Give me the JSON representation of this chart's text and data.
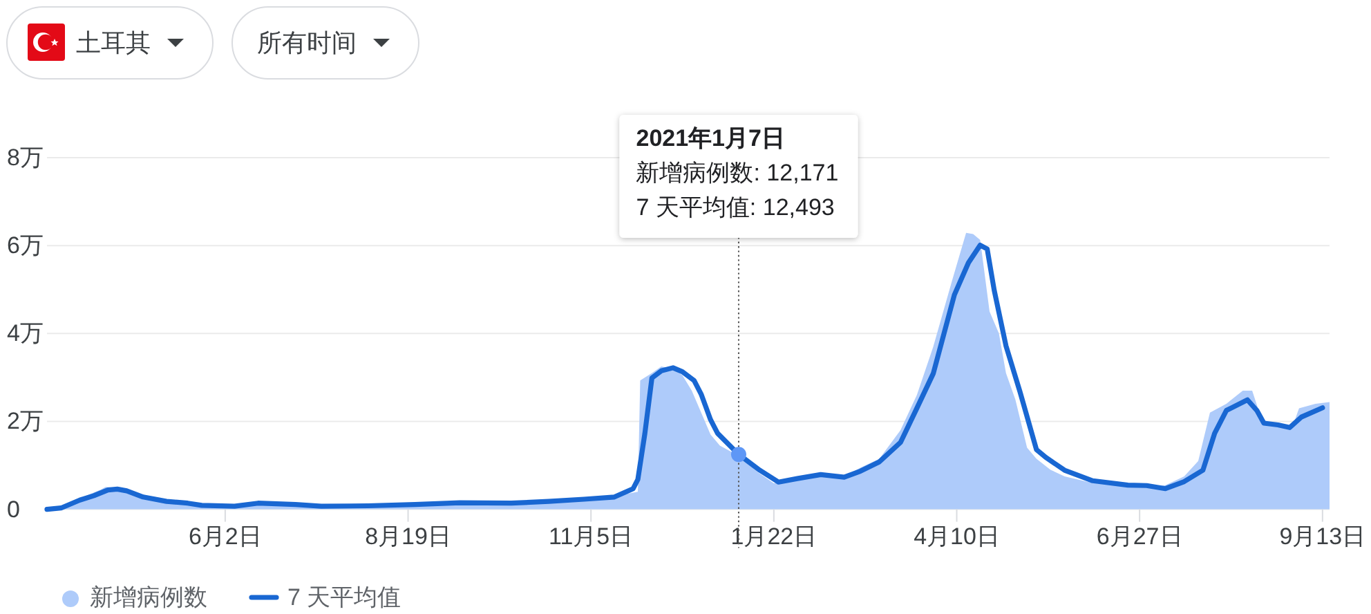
{
  "chart_data": {
    "type": "line",
    "annotations": [
      "土耳其",
      "所有时间",
      "2021年1月7日",
      "新增病例数: 12,171",
      "7 天平均值: 12,493"
    ],
    "series": [
      {
        "name": "新增病例数",
        "type": "area",
        "color": "#aecbfa",
        "x": [
          "2020-03-18",
          "2020-03-24",
          "2020-04-01",
          "2020-04-10",
          "2020-04-12",
          "2020-04-18",
          "2020-04-24",
          "2020-05-01",
          "2020-05-10",
          "2020-05-20",
          "2020-06-02",
          "2020-06-12",
          "2020-07-01",
          "2020-07-15",
          "2020-08-02",
          "2020-08-22",
          "2020-09-10",
          "2020-10-02",
          "2020-10-18",
          "2020-11-02",
          "2020-11-15",
          "2020-11-25",
          "2020-11-26",
          "2020-12-01",
          "2020-12-05",
          "2020-12-10",
          "2020-12-14",
          "2020-12-18",
          "2020-12-22",
          "2020-12-26",
          "2020-12-30",
          "2021-01-07",
          "2021-01-15",
          "2021-01-22",
          "2021-02-01",
          "2021-02-11",
          "2021-02-21",
          "2021-02-28",
          "2021-03-08",
          "2021-03-17",
          "2021-03-24",
          "2021-03-31",
          "2021-04-08",
          "2021-04-14",
          "2021-04-17",
          "2021-04-20",
          "2021-04-24",
          "2021-04-28",
          "2021-05-01",
          "2021-05-05",
          "2021-05-10",
          "2021-05-14",
          "2021-05-20",
          "2021-05-26",
          "2021-06-07",
          "2021-06-22",
          "2021-06-30",
          "2021-07-08",
          "2021-07-16",
          "2021-07-22",
          "2021-07-27",
          "2021-08-03",
          "2021-08-10",
          "2021-08-14",
          "2021-08-18",
          "2021-08-25",
          "2021-08-31",
          "2021-09-03",
          "2021-09-10",
          "2021-09-16"
        ],
        "values": [
          0,
          0.05,
          0.25,
          0.45,
          0.51,
          0.48,
          0.38,
          0.26,
          0.16,
          0.1,
          0.09,
          0.15,
          0.12,
          0.1,
          0.1,
          0.12,
          0.16,
          0.15,
          0.18,
          0.23,
          0.3,
          0.4,
          2.93,
          3.1,
          3.25,
          3.2,
          3.05,
          2.7,
          2.2,
          1.7,
          1.45,
          1.2171,
          0.85,
          0.59,
          0.75,
          0.8,
          0.75,
          0.95,
          1.15,
          1.8,
          2.6,
          3.7,
          5.2,
          6.29,
          6.26,
          6.13,
          4.5,
          4.0,
          3.1,
          2.5,
          1.4,
          1.15,
          0.9,
          0.75,
          0.6,
          0.53,
          0.5,
          0.55,
          0.75,
          1.1,
          2.2,
          2.4,
          2.7,
          2.7,
          2.05,
          1.9,
          1.85,
          2.3,
          2.4,
          2.44
        ]
      },
      {
        "name": "7 天平均值",
        "color": "#1967d2",
        "x": [
          "2020-03-18",
          "2020-03-24",
          "2020-04-01",
          "2020-04-07",
          "2020-04-13",
          "2020-04-17",
          "2020-04-21",
          "2020-04-28",
          "2020-05-08",
          "2020-05-17",
          "2020-05-23",
          "2020-06-06",
          "2020-06-16",
          "2020-07-02",
          "2020-07-13",
          "2020-08-02",
          "2020-08-22",
          "2020-09-10",
          "2020-10-02",
          "2020-10-18",
          "2020-11-02",
          "2020-11-15",
          "2020-11-23",
          "2020-11-25",
          "2020-11-28",
          "2020-12-01",
          "2020-12-05",
          "2020-12-10",
          "2020-12-14",
          "2020-12-19",
          "2020-12-22",
          "2020-12-26",
          "2020-12-29",
          "2021-01-07",
          "2021-01-16",
          "2021-01-24",
          "2021-02-01",
          "2021-02-11",
          "2021-02-21",
          "2021-02-28",
          "2021-03-08",
          "2021-03-17",
          "2021-03-24",
          "2021-03-31",
          "2021-04-09",
          "2021-04-15",
          "2021-04-20",
          "2021-04-23",
          "2021-04-26",
          "2021-05-01",
          "2021-05-07",
          "2021-05-14",
          "2021-05-18",
          "2021-05-26",
          "2021-06-07",
          "2021-06-22",
          "2021-06-30",
          "2021-07-08",
          "2021-07-16",
          "2021-07-24",
          "2021-07-29",
          "2021-08-03",
          "2021-08-12",
          "2021-08-16",
          "2021-08-19",
          "2021-08-25",
          "2021-08-30",
          "2021-09-04",
          "2021-09-13"
        ],
        "values": [
          0,
          0.03,
          0.21,
          0.31,
          0.44,
          0.46,
          0.42,
          0.28,
          0.18,
          0.14,
          0.09,
          0.07,
          0.14,
          0.11,
          0.07,
          0.08,
          0.11,
          0.15,
          0.14,
          0.18,
          0.23,
          0.28,
          0.47,
          0.68,
          1.73,
          2.99,
          3.15,
          3.22,
          3.13,
          2.93,
          2.62,
          2.04,
          1.73,
          1.2493,
          0.89,
          0.62,
          0.7,
          0.79,
          0.73,
          0.87,
          1.08,
          1.52,
          2.3,
          3.09,
          4.88,
          5.61,
          6.01,
          5.92,
          4.98,
          3.72,
          2.67,
          1.36,
          1.18,
          0.89,
          0.65,
          0.55,
          0.54,
          0.47,
          0.63,
          0.89,
          1.73,
          2.25,
          2.49,
          2.25,
          1.96,
          1.92,
          1.86,
          2.1,
          2.31
        ]
      },
      {
        "type": "scatter",
        "color": "#5e97f6",
        "x": [
          "2021-01-07"
        ],
        "values": [
          1.2493
        ]
      }
    ],
    "xlim": [
      "2020-03-18",
      "2021-09-16"
    ],
    "xticks": [
      {
        "value": "2020-06-02",
        "label": "6月2日"
      },
      {
        "value": "2020-08-19",
        "label": "8月19日"
      },
      {
        "value": "2020-11-05",
        "label": "11月5日"
      },
      {
        "value": "2021-01-22",
        "label": "1月22日"
      },
      {
        "value": "2021-04-10",
        "label": "4月10日"
      },
      {
        "value": "2021-06-27",
        "label": "6月27日"
      },
      {
        "value": "2021-09-13",
        "label": "9月13日"
      }
    ],
    "ylim": [
      0,
      8
    ],
    "yticks": [
      0,
      {
        "value": 2,
        "label": "2万"
      },
      {
        "value": 4,
        "label": "4万"
      },
      {
        "value": 6,
        "label": "6万"
      },
      {
        "value": 8,
        "label": "8万"
      }
    ],
    "grid": "y",
    "legend": "bottom",
    "ref_lines": [
      {
        "axis": "x",
        "value": "2021-01-07",
        "color": "#555555",
        "line_style": "dotted"
      }
    ]
  }
}
